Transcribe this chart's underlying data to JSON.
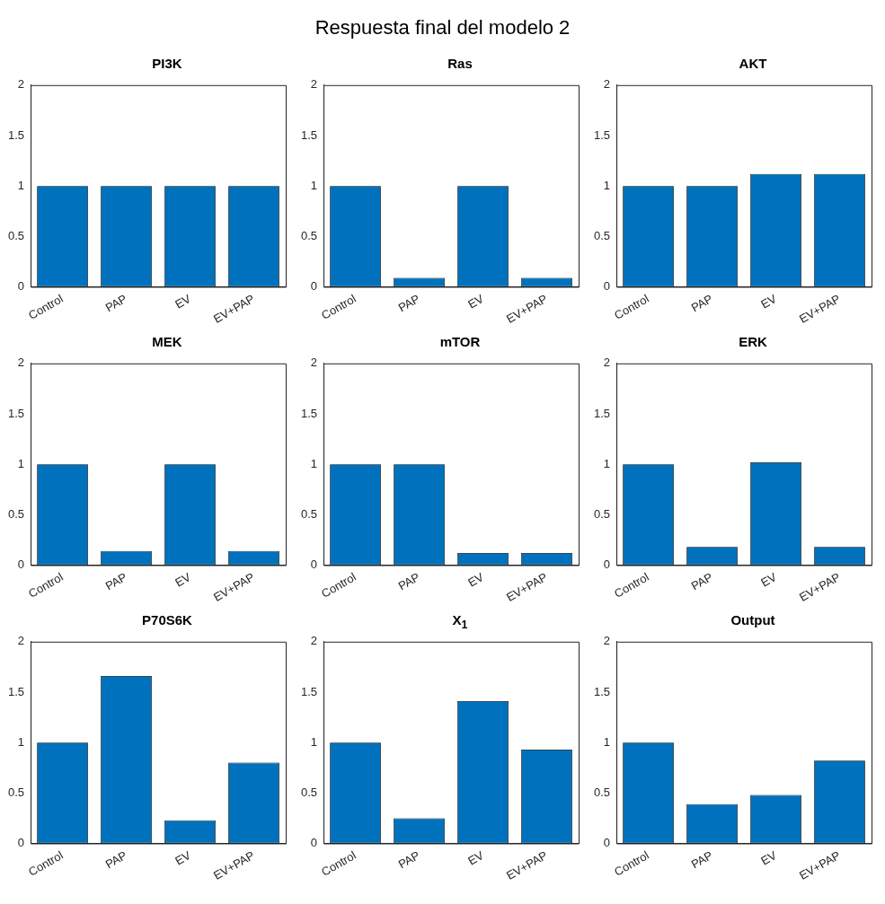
{
  "chart_data": [
    {
      "type": "bar",
      "title": "PI3K",
      "annotations": [
        "Respuesta final del modelo 2"
      ],
      "categories": [
        "Control",
        "PAP",
        "EV",
        "EV+PAP"
      ],
      "values": [
        1,
        1,
        1,
        1
      ],
      "color": "#0072bd",
      "ylim": [
        0,
        2
      ],
      "yticks": [
        0,
        0.5,
        1,
        1.5,
        2
      ]
    },
    {
      "type": "bar",
      "title": "Ras",
      "categories": [
        "Control",
        "PAP",
        "EV",
        "EV+PAP"
      ],
      "values": [
        1,
        0.09,
        1,
        0.09
      ],
      "color": "#0072bd",
      "ylim": [
        0,
        2
      ],
      "yticks": [
        0,
        0.5,
        1,
        1.5,
        2
      ]
    },
    {
      "type": "bar",
      "title": "AKT",
      "categories": [
        "Control",
        "PAP",
        "EV",
        "EV+PAP"
      ],
      "values": [
        1,
        1,
        1.12,
        1.12
      ],
      "color": "#0072bd",
      "ylim": [
        0,
        2
      ],
      "yticks": [
        0,
        0.5,
        1,
        1.5,
        2
      ]
    },
    {
      "type": "bar",
      "title": "MEK",
      "categories": [
        "Control",
        "PAP",
        "EV",
        "EV+PAP"
      ],
      "values": [
        1,
        0.14,
        1,
        0.14
      ],
      "color": "#0072bd",
      "ylim": [
        0,
        2
      ],
      "yticks": [
        0,
        0.5,
        1,
        1.5,
        2
      ]
    },
    {
      "type": "bar",
      "title": "mTOR",
      "categories": [
        "Control",
        "PAP",
        "EV",
        "EV+PAP"
      ],
      "values": [
        1,
        1,
        0.12,
        0.12
      ],
      "color": "#0072bd",
      "ylim": [
        0,
        2
      ],
      "yticks": [
        0,
        0.5,
        1,
        1.5,
        2
      ]
    },
    {
      "type": "bar",
      "title": "ERK",
      "categories": [
        "Control",
        "PAP",
        "EV",
        "EV+PAP"
      ],
      "values": [
        1,
        0.18,
        1.02,
        0.18
      ],
      "color": "#0072bd",
      "ylim": [
        0,
        2
      ],
      "yticks": [
        0,
        0.5,
        1,
        1.5,
        2
      ]
    },
    {
      "type": "bar",
      "title": "P70S6K",
      "categories": [
        "Control",
        "PAP",
        "EV",
        "EV+PAP"
      ],
      "values": [
        1,
        1.66,
        0.23,
        0.8
      ],
      "color": "#0072bd",
      "ylim": [
        0,
        2
      ],
      "yticks": [
        0,
        0.5,
        1,
        1.5,
        2
      ]
    },
    {
      "type": "bar",
      "title": "X$_{1}$",
      "categories": [
        "Control",
        "PAP",
        "EV",
        "EV+PAP"
      ],
      "values": [
        1,
        0.25,
        1.41,
        0.93
      ],
      "color": "#0072bd",
      "ylim": [
        0,
        2
      ],
      "yticks": [
        0,
        0.5,
        1,
        1.5,
        2
      ]
    },
    {
      "type": "bar",
      "title": "Output",
      "categories": [
        "Control",
        "PAP",
        "EV",
        "EV+PAP"
      ],
      "values": [
        1,
        0.39,
        0.48,
        0.82
      ],
      "color": "#0072bd",
      "ylim": [
        0,
        2
      ],
      "yticks": [
        0,
        0.5,
        1,
        1.5,
        2
      ]
    }
  ]
}
